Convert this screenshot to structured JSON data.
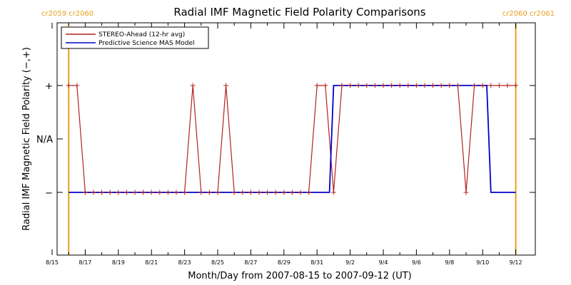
{
  "chart_data": {
    "type": "line",
    "title": "Radial IMF Magnetic Field Polarity Comparisons",
    "xlabel": "Month/Day from 2007-08-15 to 2007-09-12 (UT)",
    "ylabel": "Radial IMF Magnetic Field Polarity (−,+)",
    "xlim": [
      0,
      28
    ],
    "ylim": [
      -2,
      2
    ],
    "x_ticks": [
      {
        "x": 0,
        "label": "8/15"
      },
      {
        "x": 2,
        "label": "8/17"
      },
      {
        "x": 4,
        "label": "8/19"
      },
      {
        "x": 6,
        "label": "8/21"
      },
      {
        "x": 8,
        "label": "8/23"
      },
      {
        "x": 10,
        "label": "8/25"
      },
      {
        "x": 12,
        "label": "8/27"
      },
      {
        "x": 14,
        "label": "8/29"
      },
      {
        "x": 16,
        "label": "8/31"
      },
      {
        "x": 18,
        "label": "9/2"
      },
      {
        "x": 20,
        "label": "9/4"
      },
      {
        "x": 22,
        "label": "9/6"
      },
      {
        "x": 24,
        "label": "9/8"
      },
      {
        "x": 26,
        "label": "9/10"
      },
      {
        "x": 28,
        "label": "9/12"
      }
    ],
    "y_ticks": [
      {
        "y": 1,
        "label": "+"
      },
      {
        "y": 0,
        "label": "N/A"
      },
      {
        "y": -1,
        "label": "−"
      }
    ],
    "carrington_markers": [
      {
        "x": 1.0,
        "label": "cr2059 cr2060",
        "align": "left"
      },
      {
        "x": 28.0,
        "label": "cr2060 cr2061",
        "align": "right"
      }
    ],
    "legend_position": "top-left",
    "series": [
      {
        "name": "STEREO-Ahead (12-hr avg)",
        "color": "#b22222",
        "markers": true,
        "x": [
          1.0,
          1.5,
          2.0,
          2.5,
          3.0,
          3.5,
          4.0,
          4.5,
          5.0,
          5.5,
          6.0,
          6.5,
          7.0,
          7.5,
          8.0,
          8.5,
          9.0,
          9.5,
          10.0,
          10.5,
          11.0,
          11.5,
          12.0,
          12.5,
          13.0,
          13.5,
          14.0,
          14.5,
          15.0,
          15.5,
          16.0,
          16.5,
          17.0,
          17.5,
          18.0,
          18.5,
          19.0,
          19.5,
          20.0,
          20.5,
          21.0,
          21.5,
          22.0,
          22.5,
          23.0,
          23.5,
          24.0,
          24.5,
          25.0,
          25.5,
          26.0,
          26.5,
          27.0,
          27.5,
          28.0
        ],
        "y": [
          1,
          1,
          -1,
          -1,
          -1,
          -1,
          -1,
          -1,
          -1,
          -1,
          -1,
          -1,
          -1,
          -1,
          -1,
          1,
          -1,
          -1,
          -1,
          1,
          -1,
          -1,
          -1,
          -1,
          -1,
          -1,
          -1,
          -1,
          -1,
          -1,
          1,
          1,
          -1,
          1,
          1,
          1,
          1,
          1,
          1,
          1,
          1,
          1,
          1,
          1,
          1,
          1,
          1,
          1,
          -1,
          1,
          1,
          1,
          1,
          1,
          1
        ]
      },
      {
        "name": "Predictive Science MAS Model",
        "color": "#0000cc",
        "markers": false,
        "x": [
          1.0,
          16.75,
          17.0,
          26.25,
          26.5,
          28.0
        ],
        "y": [
          -1,
          -1,
          1,
          1,
          -1,
          -1
        ]
      }
    ],
    "colors": {
      "cr_line": "#e8a020",
      "axis": "#000000"
    }
  }
}
